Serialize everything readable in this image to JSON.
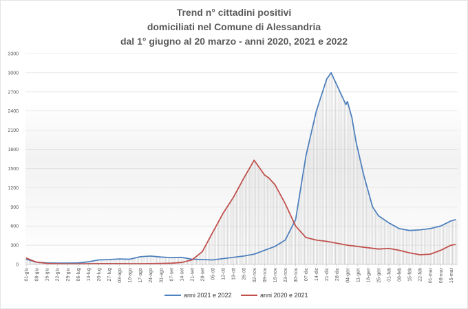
{
  "chart_data": {
    "type": "line",
    "title": [
      "Trend n° cittadini positivi",
      "domiciliati nel Comune di Alessandria",
      "dal 1° giugno al 20 marzo - anni 2020, 2021 e 2022"
    ],
    "xlabel": "",
    "ylabel": "",
    "ylim": [
      0,
      3300
    ],
    "yticks": [
      "0",
      "300",
      "600",
      "900",
      "1200",
      "1500",
      "1800",
      "2100",
      "2400",
      "2700",
      "3000",
      "3300"
    ],
    "x_ticks": [
      "01-giu",
      "08-giu",
      "15-giu",
      "22-giu",
      "29-giu",
      "06-lug",
      "13-lug",
      "20-lug",
      "27-lug",
      "03-ago",
      "10-ago",
      "17-ago",
      "24-ago",
      "31-ago",
      "07-set",
      "14-set",
      "21-set",
      "28-set",
      "05-ott",
      "12-ott",
      "19-ott",
      "26-ott",
      "02-nov",
      "09-nov",
      "16-nov",
      "23-nov",
      "30-nov",
      "07-dic",
      "14-dic",
      "21-dic",
      "28-dic",
      "04-gen",
      "11-gen",
      "18-gen",
      "25-gen",
      "01-feb",
      "08-feb",
      "15-feb",
      "22-feb",
      "01-mar",
      "08-mar",
      "15-mar"
    ],
    "grid": "horizontal",
    "legend_position": "bottom",
    "series": [
      {
        "name": "anni 2021 e 2022",
        "color": "#4f81bd",
        "fill": "vertical-hatch",
        "x_index": [
          0,
          3,
          7,
          14,
          21,
          28,
          35,
          42,
          49,
          56,
          63,
          70,
          77,
          84,
          91,
          98,
          105,
          112,
          119,
          126,
          133,
          140,
          147,
          154,
          161,
          168,
          175,
          182,
          189,
          196,
          203,
          206,
          210,
          213,
          216,
          217,
          220,
          223,
          224,
          227,
          228,
          231,
          234,
          238,
          245,
          252,
          259,
          266,
          273,
          280,
          287,
          290
        ],
        "values": [
          80,
          60,
          35,
          22,
          20,
          20,
          22,
          40,
          70,
          75,
          85,
          80,
          120,
          130,
          115,
          105,
          110,
          80,
          75,
          70,
          90,
          110,
          130,
          160,
          220,
          280,
          380,
          700,
          1700,
          2400,
          2900,
          3000,
          2800,
          2650,
          2500,
          2550,
          2300,
          1900,
          1800,
          1500,
          1400,
          1150,
          900,
          760,
          650,
          560,
          530,
          540,
          560,
          600,
          680,
          700
        ]
      },
      {
        "name": "anni 2020 e 2021",
        "color": "#c0504d",
        "fill": "vertical-hatch",
        "x_index": [
          0,
          3,
          7,
          14,
          21,
          28,
          35,
          42,
          49,
          56,
          63,
          70,
          77,
          84,
          91,
          98,
          105,
          112,
          119,
          126,
          133,
          140,
          147,
          154,
          161,
          164,
          168,
          175,
          182,
          189,
          196,
          203,
          210,
          217,
          224,
          231,
          238,
          245,
          252,
          259,
          266,
          273,
          280,
          287,
          290
        ],
        "values": [
          100,
          70,
          35,
          15,
          10,
          8,
          8,
          10,
          12,
          12,
          12,
          10,
          10,
          12,
          15,
          18,
          30,
          70,
          200,
          500,
          800,
          1050,
          1350,
          1630,
          1400,
          1350,
          1250,
          950,
          600,
          420,
          380,
          360,
          330,
          300,
          280,
          260,
          240,
          250,
          220,
          180,
          150,
          160,
          220,
          300,
          310
        ]
      }
    ]
  }
}
